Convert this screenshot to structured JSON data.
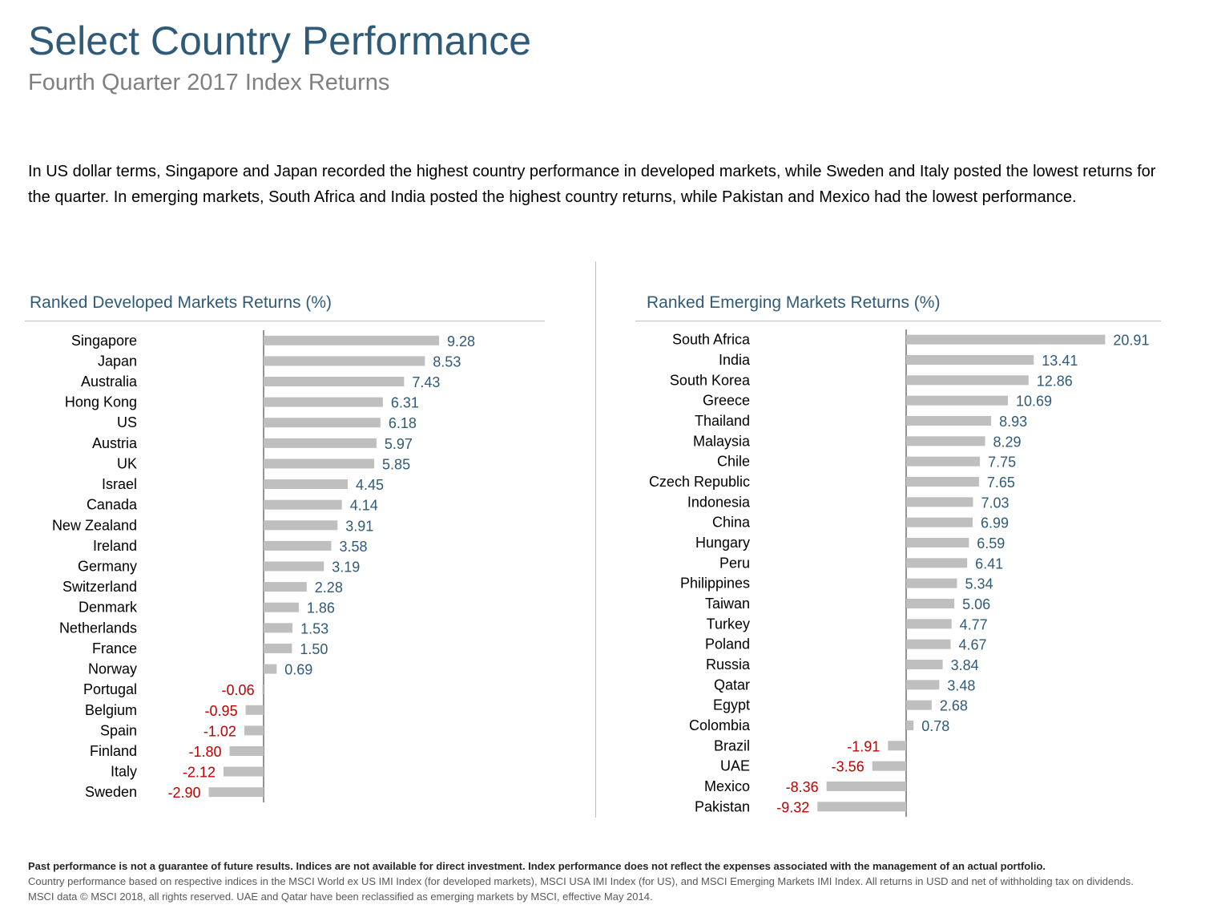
{
  "title": "Select Country Performance",
  "subtitle": "Fourth Quarter 2017 Index Returns",
  "intro": "In US dollar terms, Singapore and Japan recorded the highest country performance in developed markets, while Sweden and Italy posted the lowest returns for the quarter. In emerging markets, South Africa and India posted the highest country returns, while Pakistan and Mexico had the lowest performance.",
  "colors": {
    "title": "#2f5b78",
    "bar": "#bfbfbf",
    "positive_label": "#2f5b78",
    "negative_label": "#c00000"
  },
  "chart_data": [
    {
      "type": "bar",
      "orientation": "horizontal",
      "title": "Ranked Developed Markets Returns (%)",
      "categories": [
        "Singapore",
        "Japan",
        "Australia",
        "Hong Kong",
        "US",
        "Austria",
        "UK",
        "Israel",
        "Canada",
        "New Zealand",
        "Ireland",
        "Germany",
        "Switzerland",
        "Denmark",
        "Netherlands",
        "France",
        "Norway",
        "Portugal",
        "Belgium",
        "Spain",
        "Finland",
        "Italy",
        "Sweden"
      ],
      "values": [
        9.28,
        8.53,
        7.43,
        6.31,
        6.18,
        5.97,
        5.85,
        4.45,
        4.14,
        3.91,
        3.58,
        3.19,
        2.28,
        1.86,
        1.53,
        1.5,
        0.69,
        -0.06,
        -0.95,
        -1.02,
        -1.8,
        -2.12,
        -2.9
      ],
      "labels": [
        "9.28",
        "8.53",
        "7.43",
        "6.31",
        "6.18",
        "5.97",
        "5.85",
        "4.45",
        "4.14",
        "3.91",
        "3.58",
        "3.19",
        "2.28",
        "1.86",
        "1.53",
        "1.50",
        "0.69",
        "-0.06",
        "-0.95",
        "-1.02",
        "-1.80",
        "-2.12",
        "-2.90"
      ],
      "grid": false
    },
    {
      "type": "bar",
      "orientation": "horizontal",
      "title": "Ranked Emerging Markets Returns (%)",
      "categories": [
        "South Africa",
        "India",
        "South Korea",
        "Greece",
        "Thailand",
        "Malaysia",
        "Chile",
        "Czech Republic",
        "Indonesia",
        "China",
        "Hungary",
        "Peru",
        "Philippines",
        "Taiwan",
        "Turkey",
        "Poland",
        "Russia",
        "Qatar",
        "Egypt",
        "Colombia",
        "Brazil",
        "UAE",
        "Mexico",
        "Pakistan"
      ],
      "values": [
        20.91,
        13.41,
        12.86,
        10.69,
        8.93,
        8.29,
        7.75,
        7.65,
        7.03,
        6.99,
        6.59,
        6.41,
        5.34,
        5.06,
        4.77,
        4.67,
        3.84,
        3.48,
        2.68,
        0.78,
        -1.91,
        -3.56,
        -8.36,
        -9.32
      ],
      "labels": [
        "20.91",
        "13.41",
        "12.86",
        "10.69",
        "8.93",
        "8.29",
        "7.75",
        "7.65",
        "7.03",
        "6.99",
        "6.59",
        "6.41",
        "5.34",
        "5.06",
        "4.77",
        "4.67",
        "3.84",
        "3.48",
        "2.68",
        "0.78",
        "-1.91",
        "-3.56",
        "-8.36",
        "-9.32"
      ],
      "grid": false
    }
  ],
  "footer": {
    "disclaimer": "Past performance is not a guarantee of future results. Indices are not available for direct investment. Index performance does not reflect the expenses associated with the management of an actual portfolio.",
    "note": "Country performance based on respective indices in the MSCI World ex US IMI Index (for developed markets), MSCI USA IMI Index (for US), and MSCI Emerging Markets IMI Index. All returns in USD and net of withholding tax on dividends. MSCI data © MSCI 2018, all rights reserved. UAE and Qatar have been reclassified as emerging markets by MSCI, effective May 2014."
  }
}
